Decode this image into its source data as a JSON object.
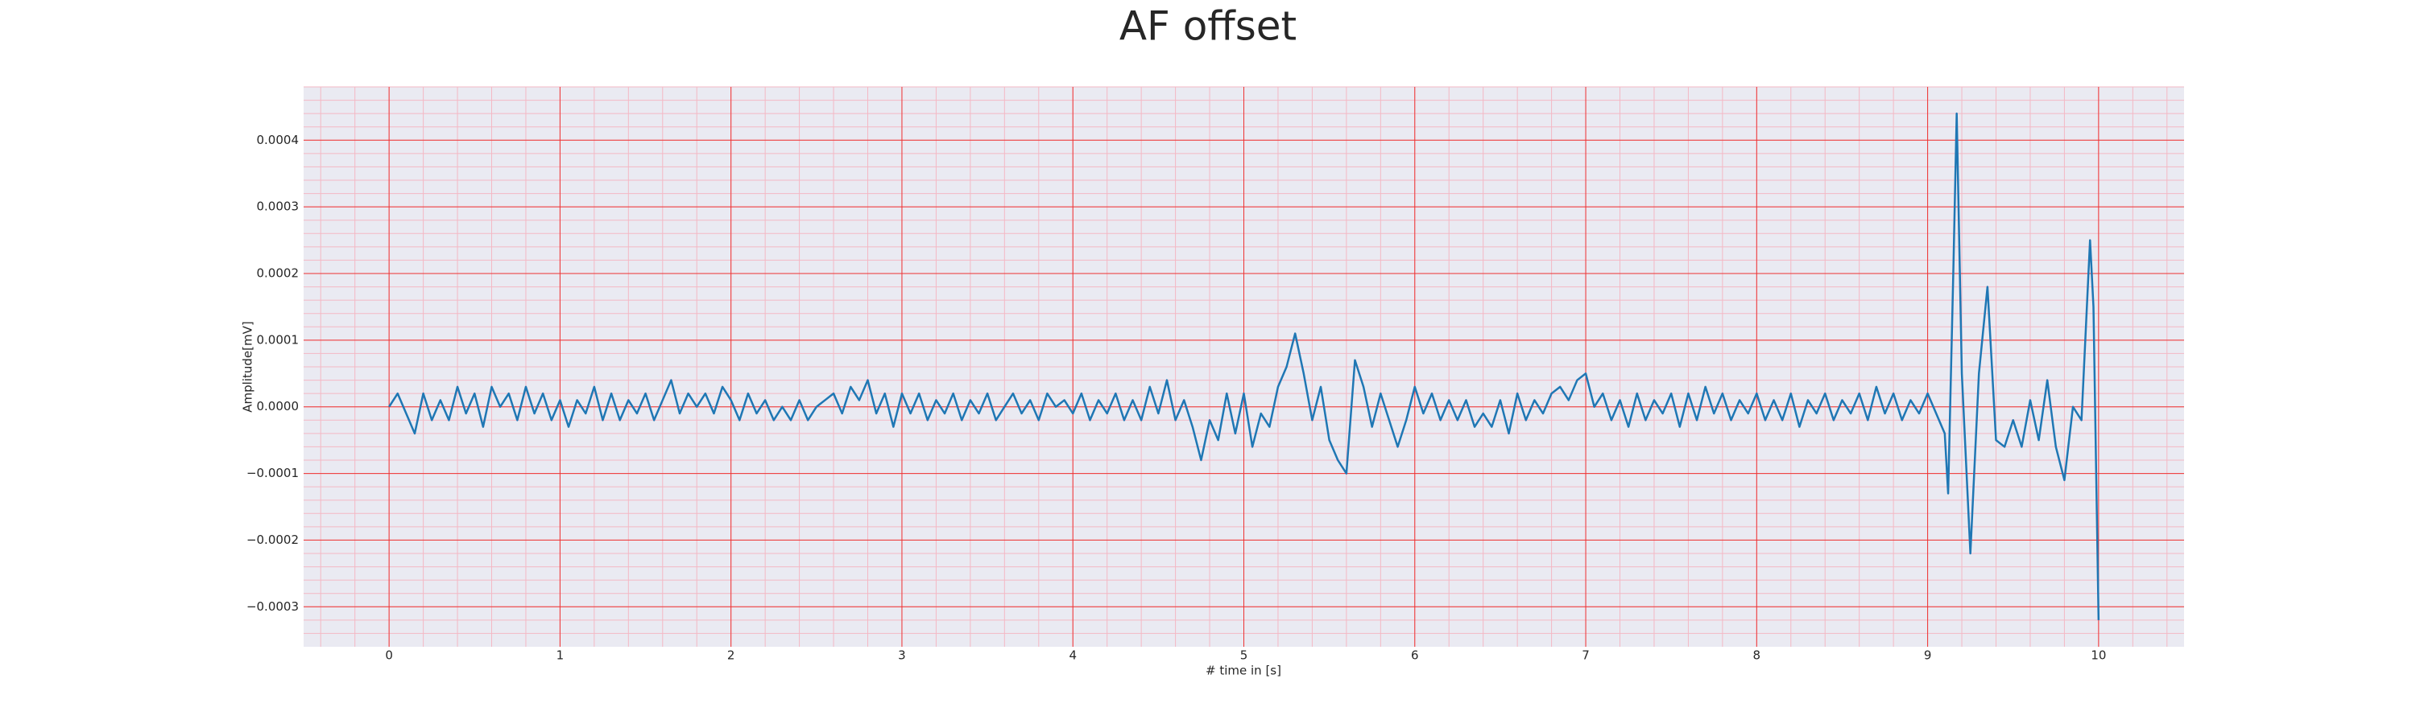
{
  "chart_data": {
    "type": "line",
    "title": "AF offset",
    "xlabel": "# time in [s]",
    "ylabel": "Amplitude[mV]",
    "xlim": [
      -0.5,
      10.5
    ],
    "ylim": [
      -0.00036,
      0.00048
    ],
    "xticks": [
      0,
      1,
      2,
      3,
      4,
      5,
      6,
      7,
      8,
      9,
      10
    ],
    "yticks": [
      {
        "value": -0.0003,
        "label": "−0.0003"
      },
      {
        "value": -0.0002,
        "label": "−0.0002"
      },
      {
        "value": -0.0001,
        "label": "−0.0001"
      },
      {
        "value": 0,
        "label": "0.0000"
      },
      0.0001,
      0.0002,
      0.0003,
      0.0004
    ],
    "grid": true,
    "minor_grid": true,
    "series": [
      {
        "color": "#1f77b4",
        "x": [
          0,
          0.05,
          0.1,
          0.15,
          0.2,
          0.25,
          0.3,
          0.35,
          0.4,
          0.45,
          0.5,
          0.55,
          0.6,
          0.65,
          0.7,
          0.75,
          0.8,
          0.85,
          0.9,
          0.95,
          1,
          1.05,
          1.1,
          1.15,
          1.2,
          1.25,
          1.3,
          1.35,
          1.4,
          1.45,
          1.5,
          1.55,
          1.6,
          1.65,
          1.7,
          1.75,
          1.8,
          1.85,
          1.9,
          1.95,
          2,
          2.05,
          2.1,
          2.15,
          2.2,
          2.25,
          2.3,
          2.35,
          2.4,
          2.45,
          2.5,
          2.55,
          2.6,
          2.65,
          2.7,
          2.75,
          2.8,
          2.85,
          2.9,
          2.95,
          3,
          3.05,
          3.1,
          3.15,
          3.2,
          3.25,
          3.3,
          3.35,
          3.4,
          3.45,
          3.5,
          3.55,
          3.6,
          3.65,
          3.7,
          3.75,
          3.8,
          3.85,
          3.9,
          3.95,
          4,
          4.05,
          4.1,
          4.15,
          4.2,
          4.25,
          4.3,
          4.35,
          4.4,
          4.45,
          4.5,
          4.55,
          4.6,
          4.65,
          4.7,
          4.75,
          4.8,
          4.85,
          4.9,
          4.95,
          5,
          5.05,
          5.1,
          5.15,
          5.2,
          5.25,
          5.3,
          5.35,
          5.4,
          5.45,
          5.5,
          5.55,
          5.6,
          5.65,
          5.7,
          5.75,
          5.8,
          5.85,
          5.9,
          5.95,
          6,
          6.05,
          6.1,
          6.15,
          6.2,
          6.25,
          6.3,
          6.35,
          6.4,
          6.45,
          6.5,
          6.55,
          6.6,
          6.65,
          6.7,
          6.75,
          6.8,
          6.85,
          6.9,
          6.95,
          7,
          7.05,
          7.1,
          7.15,
          7.2,
          7.25,
          7.3,
          7.35,
          7.4,
          7.45,
          7.5,
          7.55,
          7.6,
          7.65,
          7.7,
          7.75,
          7.8,
          7.85,
          7.9,
          7.95,
          8,
          8.05,
          8.1,
          8.15,
          8.2,
          8.25,
          8.3,
          8.35,
          8.4,
          8.45,
          8.5,
          8.55,
          8.6,
          8.65,
          8.7,
          8.75,
          8.8,
          8.85,
          8.9,
          8.95,
          9,
          9.05,
          9.1,
          9.12,
          9.15,
          9.17,
          9.2,
          9.25,
          9.3,
          9.35,
          9.4,
          9.45,
          9.5,
          9.55,
          9.6,
          9.65,
          9.7,
          9.75,
          9.8,
          9.85,
          9.9,
          9.95,
          9.97,
          10
        ],
        "values": [
          0,
          2e-05,
          -1e-05,
          -4e-05,
          2e-05,
          -2e-05,
          1e-05,
          -2e-05,
          3e-05,
          -1e-05,
          2e-05,
          -3e-05,
          3e-05,
          0,
          2e-05,
          -2e-05,
          3e-05,
          -1e-05,
          2e-05,
          -2e-05,
          1e-05,
          -3e-05,
          1e-05,
          -1e-05,
          3e-05,
          -2e-05,
          2e-05,
          -2e-05,
          1e-05,
          -1e-05,
          2e-05,
          -2e-05,
          1e-05,
          4e-05,
          -1e-05,
          2e-05,
          0,
          2e-05,
          -1e-05,
          3e-05,
          1e-05,
          -2e-05,
          2e-05,
          -1e-05,
          1e-05,
          -2e-05,
          0,
          -2e-05,
          1e-05,
          -2e-05,
          0,
          1e-05,
          2e-05,
          -1e-05,
          3e-05,
          1e-05,
          4e-05,
          -1e-05,
          2e-05,
          -3e-05,
          2e-05,
          -1e-05,
          2e-05,
          -2e-05,
          1e-05,
          -1e-05,
          2e-05,
          -2e-05,
          1e-05,
          -1e-05,
          2e-05,
          -2e-05,
          0,
          2e-05,
          -1e-05,
          1e-05,
          -2e-05,
          2e-05,
          0,
          1e-05,
          -1e-05,
          2e-05,
          -2e-05,
          1e-05,
          -1e-05,
          2e-05,
          -2e-05,
          1e-05,
          -2e-05,
          3e-05,
          -1e-05,
          4e-05,
          -2e-05,
          1e-05,
          -3e-05,
          -8e-05,
          -2e-05,
          -5e-05,
          2e-05,
          -4e-05,
          2e-05,
          -6e-05,
          -1e-05,
          -3e-05,
          3e-05,
          6e-05,
          0.00011,
          5e-05,
          -2e-05,
          3e-05,
          -5e-05,
          -8e-05,
          -0.0001,
          7e-05,
          3e-05,
          -3e-05,
          2e-05,
          -2e-05,
          -6e-05,
          -2e-05,
          3e-05,
          -1e-05,
          2e-05,
          -2e-05,
          1e-05,
          -2e-05,
          1e-05,
          -3e-05,
          -1e-05,
          -3e-05,
          1e-05,
          -4e-05,
          2e-05,
          -2e-05,
          1e-05,
          -1e-05,
          2e-05,
          3e-05,
          1e-05,
          4e-05,
          5e-05,
          0,
          2e-05,
          -2e-05,
          1e-05,
          -3e-05,
          2e-05,
          -2e-05,
          1e-05,
          -1e-05,
          2e-05,
          -3e-05,
          2e-05,
          -2e-05,
          3e-05,
          -1e-05,
          2e-05,
          -2e-05,
          1e-05,
          -1e-05,
          2e-05,
          -2e-05,
          1e-05,
          -2e-05,
          2e-05,
          -3e-05,
          1e-05,
          -1e-05,
          2e-05,
          -2e-05,
          1e-05,
          -1e-05,
          2e-05,
          -2e-05,
          3e-05,
          -1e-05,
          2e-05,
          -2e-05,
          1e-05,
          -1e-05,
          2e-05,
          -1e-05,
          -4e-05,
          -0.00013,
          0.0002,
          0.00044,
          5e-05,
          -0.00022,
          5e-05,
          0.00018,
          -5e-05,
          -6e-05,
          -2e-05,
          -6e-05,
          1e-05,
          -5e-05,
          4e-05,
          -6e-05,
          -0.00011,
          0,
          -2e-05,
          0.00025,
          0.00015,
          -0.00032
        ]
      }
    ]
  }
}
